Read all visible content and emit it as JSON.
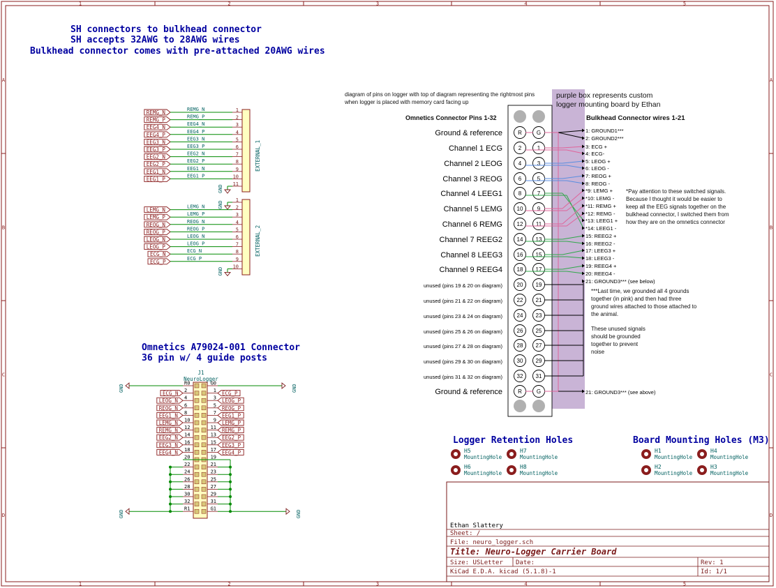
{
  "frame": {
    "top_numbers": [
      "1",
      "2",
      "3",
      "4",
      "5"
    ],
    "side_letters": [
      "A",
      "B",
      "C",
      "D"
    ]
  },
  "notes": {
    "sh_title": [
      "SH connectors to bulkhead connector",
      "SH accepts 32AWG to 28AWG wires",
      "Bulkhead connector comes with pre-attached 20AWG wires"
    ],
    "omnetics_title": [
      "Omnetics A79024-001 Connector",
      "36 pin w/ 4 guide posts"
    ],
    "diagram_caption": [
      "diagram of pins on logger with top of diagram representing the rightmost pins",
      "when logger is placed with memory card facing up"
    ],
    "purple_note": [
      "purple box represents custom",
      "logger mounting board by Ethan"
    ],
    "switched_note": [
      "*Pay attention to these switched signals.",
      "Because I thought it would be easier to",
      "keep all the EEG signals together on the",
      "bulkhead connector, I switched them from",
      "how they are on the omnetics connector"
    ],
    "ground_note": [
      "***Last time, we grounded all 4 grounds",
      "together (in pink) and then had three",
      "ground wires attached to those attached to",
      "the animal."
    ],
    "unused_note": [
      "These unused signals",
      "should be grounded",
      "together to prevent",
      "noise"
    ]
  },
  "external1": {
    "ref": "EXTERNAL_1",
    "gnd": "GND",
    "labels": [
      "REMG_N",
      "REMG_P",
      "EEG4_N",
      "EEG4_P",
      "EEG3_N",
      "EEG3_P",
      "EEG2_N",
      "EEG2_P",
      "EEG1_N",
      "EEG1_P"
    ],
    "wire_names": [
      "REMG_N",
      "REMG_P",
      "EEG4_N",
      "EEG4_P",
      "EEG3_N",
      "EEG3_P",
      "EEG2_N",
      "EEG2_P",
      "EEG1_N",
      "EEG1_P"
    ],
    "pins": [
      "1",
      "2",
      "3",
      "4",
      "5",
      "6",
      "7",
      "8",
      "9",
      "10",
      "11"
    ]
  },
  "external2": {
    "ref": "EXTERNAL_2",
    "gnd": "GND",
    "labels": [
      "LEMG_N",
      "LEMG_P",
      "REOG_N",
      "REOG_P",
      "LEOG_N",
      "LEOG_P",
      "ECG_N",
      "ECG_P"
    ],
    "wire_names": [
      "LEMG_N",
      "LEMG_P",
      "REOG_N",
      "REOG_P",
      "LEOG_N",
      "LEOG_P",
      "ECG_N",
      "ECG_P"
    ],
    "pins": [
      "1",
      "2",
      "3",
      "4",
      "5",
      "6",
      "7",
      "8",
      "9",
      "10"
    ]
  },
  "j1": {
    "ref": "J1",
    "value": "NeuroLogger",
    "gnd": "GND",
    "left_pins": [
      "R0",
      "2",
      "4",
      "6",
      "8",
      "10",
      "12",
      "14",
      "16",
      "18",
      "20",
      "22",
      "24",
      "26",
      "28",
      "30",
      "32",
      "R1"
    ],
    "right_pins": [
      "G0",
      "1",
      "3",
      "5",
      "7",
      "9",
      "11",
      "13",
      "15",
      "17",
      "19",
      "21",
      "23",
      "25",
      "27",
      "29",
      "31",
      "G1"
    ],
    "left_labels": [
      "ECG_N",
      "LEOG_N",
      "REOG_N",
      "EEG1_N",
      "LEMG_N",
      "REMG_N",
      "EEG2_N",
      "EEG3_N",
      "EEG4_N"
    ],
    "right_labels": [
      "ECG_P",
      "LEOG_P",
      "REOG_P",
      "EEG1_P",
      "LEMG_P",
      "REMG_P",
      "EEG2_P",
      "EEG3_P",
      "EEG4_P"
    ]
  },
  "pinout": {
    "left_header": "Omnetics Connector Pins 1-32",
    "right_header": "Bulkhead Connector wires 1-21",
    "rows": [
      {
        "label": "Ground & reference",
        "a": "R",
        "b": "G"
      },
      {
        "label": "Channel 1 ECG",
        "a": "2",
        "b": "1"
      },
      {
        "label": "Channel 2 LEOG",
        "a": "4",
        "b": "3"
      },
      {
        "label": "Channel 3 REOG",
        "a": "6",
        "b": "5"
      },
      {
        "label": "Channel 4 LEEG1",
        "a": "8",
        "b": "7"
      },
      {
        "label": "Channel 5 LEMG",
        "a": "10",
        "b": "9"
      },
      {
        "label": "Channel 6 REMG",
        "a": "12",
        "b": "11"
      },
      {
        "label": "Channel 7 REEG2",
        "a": "14",
        "b": "13"
      },
      {
        "label": "Channel 8 LEEG3",
        "a": "16",
        "b": "15"
      },
      {
        "label": "Channel 9 REEG4",
        "a": "18",
        "b": "17"
      },
      {
        "label": "unused (pins 19 & 20 on diagram)",
        "a": "20",
        "b": "19"
      },
      {
        "label": "unused (pins 21 & 22 on diagram)",
        "a": "22",
        "b": "21"
      },
      {
        "label": "unused (pins 23 & 24 on diagram)",
        "a": "24",
        "b": "23"
      },
      {
        "label": "unused (pins 25 & 26 on diagram)",
        "a": "26",
        "b": "25"
      },
      {
        "label": "unused (pins 27 & 28 on diagram)",
        "a": "28",
        "b": "27"
      },
      {
        "label": "unused (pins 29 & 30 on diagram)",
        "a": "30",
        "b": "29"
      },
      {
        "label": "unused (pins 31 & 32 on diagram)",
        "a": "32",
        "b": "31"
      },
      {
        "label": "Ground & reference",
        "a": "R",
        "b": "G"
      }
    ],
    "bulkhead_wires": [
      "1: GROUND1***",
      "2: GROUND2***",
      "3: ECG +",
      "4: ECG-",
      "5: LEOG +",
      "6: LEOG -",
      "7: REOG +",
      "8: REOG -",
      "*9: LEMG +",
      "*10: LEMG -",
      "*11: REMG +",
      "*12: REMG -",
      "*13: LEEG1 +",
      "*14: LEEG1 -",
      "15: REEG2 +",
      "16: REEG2 -",
      "17: LEEG3 +",
      "18: LEEG3 -",
      "19: REEG4 +",
      "20: REEG4 -",
      "21: GROUND3*** (see below)"
    ],
    "bottom_ground": "21: GROUND3*** (see above)"
  },
  "retention": {
    "title": "Logger Retention Holes",
    "holes": [
      {
        "ref": "H5",
        "value": "MountingHole"
      },
      {
        "ref": "H7",
        "value": "MountingHole"
      },
      {
        "ref": "H6",
        "value": "MountingHole"
      },
      {
        "ref": "H8",
        "value": "MountingHole"
      }
    ]
  },
  "mounting": {
    "title": "Board Mounting Holes (M3)",
    "holes": [
      {
        "ref": "H1",
        "value": "MountingHole"
      },
      {
        "ref": "H4",
        "value": "MountingHole"
      },
      {
        "ref": "H2",
        "value": "MountingHole"
      },
      {
        "ref": "H3",
        "value": "MountingHole"
      }
    ]
  },
  "title_block": {
    "company": "Ethan Slattery",
    "sheet": "Sheet: /",
    "file": "File: neuro_logger.sch",
    "title": "Title: Neuro-Logger Carrier Board",
    "size": "Size: USLetter",
    "date": "Date:",
    "rev": "Rev: 1",
    "tool": "KiCad E.D.A.  kicad (5.1.8)-1",
    "id": "Id: 1/1"
  },
  "colors": {
    "frame": "#8a1d1d",
    "title_text": "#0000a0",
    "wire": "#008a00",
    "net_label": "#006060",
    "hier_label": "#8a1d1d",
    "component_fill": "#ffffc0",
    "purple_box": "#c9b4d6",
    "pink_wire": "#e0649a",
    "blue_wire": "#5a8ee0",
    "green_wire": "#2fa84a"
  }
}
